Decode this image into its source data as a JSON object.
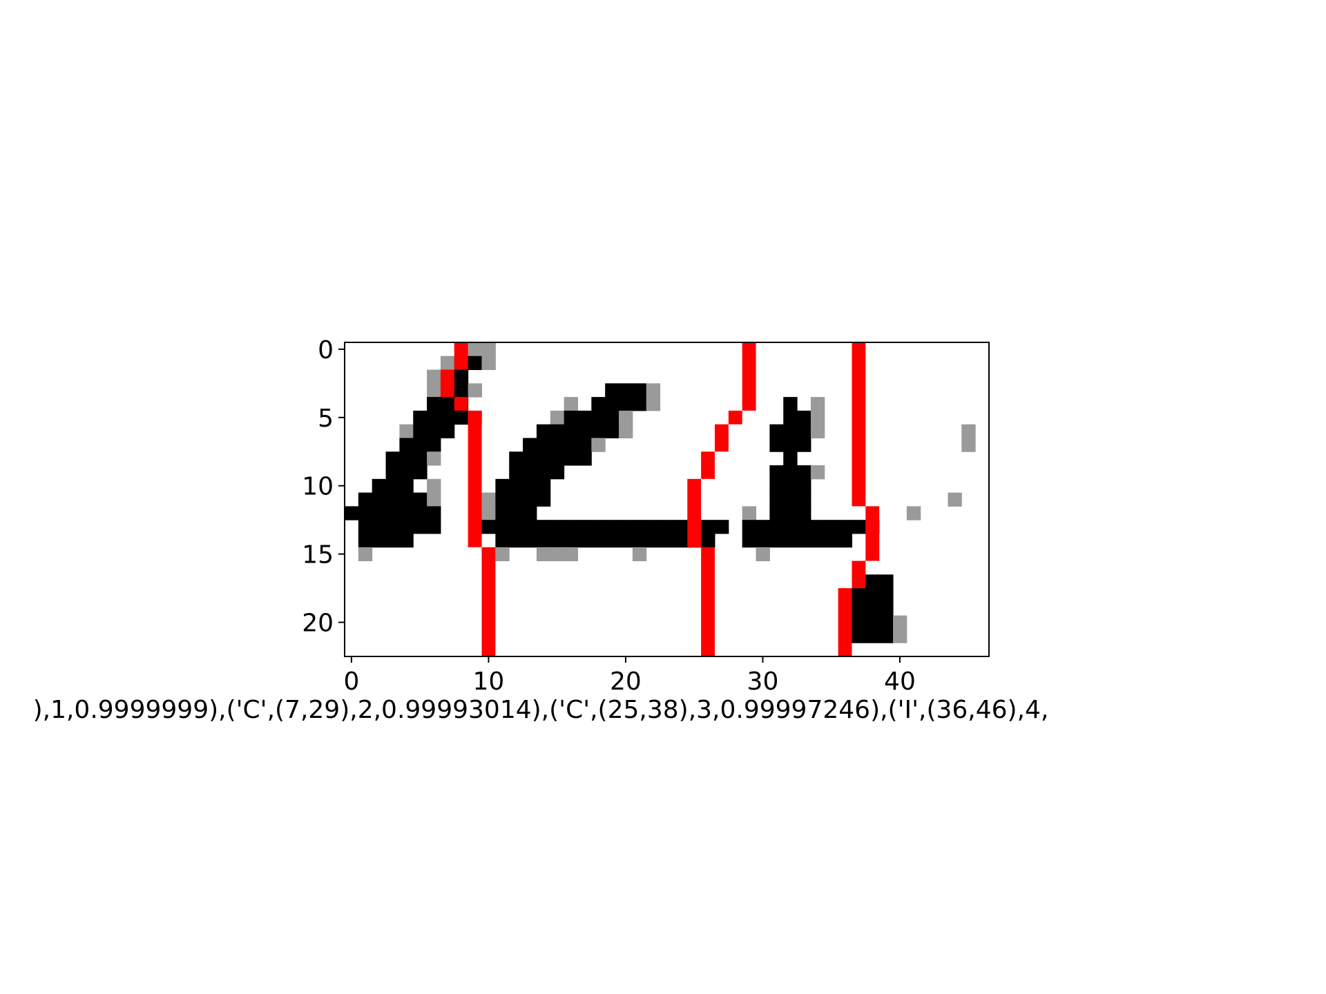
{
  "chart_data": {
    "type": "heatmap",
    "title": "",
    "xlabel": "),1,0.9999999),('C',(7,29),2,0.99993014),('C',(25,38),3,0.99997246),('I',(36,46),4,",
    "ylabel": "",
    "xlim": [
      -0.5,
      46.5
    ],
    "ylim": [
      22.5,
      -0.5
    ],
    "x_ticks": [
      0,
      10,
      20,
      30,
      40
    ],
    "y_ticks": [
      0,
      5,
      10,
      15,
      20
    ],
    "grid": false,
    "colormap": "gray_r",
    "segment_color": "#ff0000",
    "ink_color": "#000000",
    "rows": [
      "        ...                                   ",
      "       .00.                                   ",
      "      .00                                     ",
      "      .00.         000.                       ",
      "      000       . 0000.         0 .           ",
      "     0000.     .0000.           00.           ",
      "    .000      000000.          000.          .",
      "    000      00000.            000           .",
      "   000.     000000              0            ",
      "   000      0000               000.          ",
      "  000 .    0000                000           ",
      " 00000.   .0000                000          .",
      "0000000   .000               . 000       .   ",
      " 000000   000000000000000000 000000000.      ",
      " 0000      0000000000000000  00000000        ",
      " .         .  ...    .        .              ",
      "                                             ",
      "                                     000      ",
      "                                     000      ",
      "                                     000      ",
      "                                     000.     ",
      "                                     000.     ",
      "                                              "
    ],
    "segment_boundaries": [
      [
        [
          0,
          8
        ],
        [
          2,
          7
        ],
        [
          4,
          8
        ],
        [
          5,
          9
        ],
        [
          15,
          10
        ]
      ],
      [
        [
          0,
          29
        ],
        [
          5,
          28
        ],
        [
          6,
          27
        ],
        [
          8,
          26
        ],
        [
          10,
          25
        ],
        [
          15,
          26
        ]
      ],
      [
        [
          0,
          37
        ],
        [
          12,
          38
        ],
        [
          16,
          37
        ],
        [
          18,
          36
        ]
      ]
    ]
  }
}
